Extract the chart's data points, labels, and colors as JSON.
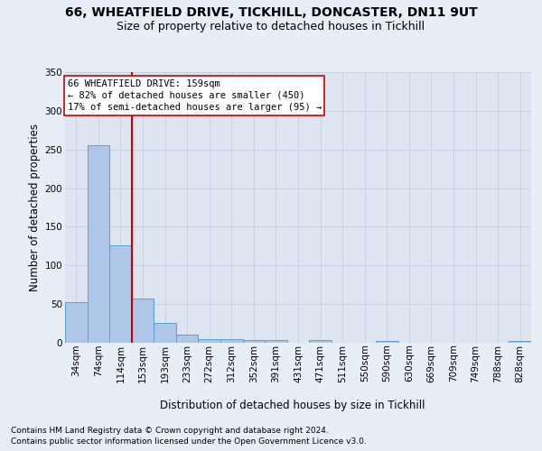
{
  "title_line1": "66, WHEATFIELD DRIVE, TICKHILL, DONCASTER, DN11 9UT",
  "title_line2": "Size of property relative to detached houses in Tickhill",
  "xlabel": "Distribution of detached houses by size in Tickhill",
  "ylabel": "Number of detached properties",
  "footer_line1": "Contains HM Land Registry data © Crown copyright and database right 2024.",
  "footer_line2": "Contains public sector information licensed under the Open Government Licence v3.0.",
  "bin_labels": [
    "34sqm",
    "74sqm",
    "114sqm",
    "153sqm",
    "193sqm",
    "233sqm",
    "272sqm",
    "312sqm",
    "352sqm",
    "391sqm",
    "431sqm",
    "471sqm",
    "511sqm",
    "550sqm",
    "590sqm",
    "630sqm",
    "669sqm",
    "709sqm",
    "749sqm",
    "788sqm",
    "828sqm"
  ],
  "bar_heights": [
    53,
    256,
    126,
    57,
    26,
    11,
    5,
    5,
    4,
    3,
    0,
    4,
    0,
    0,
    2,
    0,
    0,
    0,
    0,
    0,
    2
  ],
  "bar_color": "#aec6e8",
  "bar_edge_color": "#5a9fd4",
  "vline_color": "#cc0000",
  "annotation_text": "66 WHEATFIELD DRIVE: 159sqm\n← 82% of detached houses are smaller (450)\n17% of semi-detached houses are larger (95) →",
  "annotation_box_color": "#ffffff",
  "annotation_box_edge": "#cc0000",
  "ylim": [
    0,
    350
  ],
  "yticks": [
    0,
    50,
    100,
    150,
    200,
    250,
    300,
    350
  ],
  "background_color": "#e8eef5",
  "plot_background": "#dce5f0",
  "grid_color": "#c8d4e4",
  "title_fontsize": 10,
  "subtitle_fontsize": 9,
  "axis_label_fontsize": 8.5,
  "tick_fontsize": 7.5,
  "annotation_fontsize": 7.5,
  "footer_fontsize": 6.5
}
